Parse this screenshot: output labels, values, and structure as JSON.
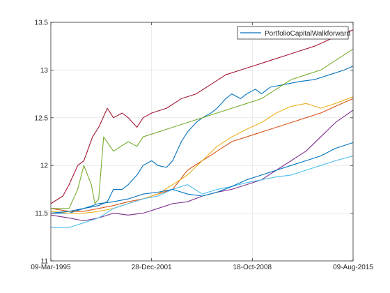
{
  "chart_data": {
    "type": "line",
    "title": "",
    "xlabel": "",
    "ylabel": "",
    "grid": true,
    "legend_placement": "top-right",
    "legend": [
      "PortfolioCapitalWalkforward"
    ],
    "x_range": [
      "1995-03-09",
      "2015-08-09"
    ],
    "ylim": [
      11,
      13.5
    ],
    "x_ticks": [
      {
        "date": "1995-03-09",
        "label": "09-Mar-1995"
      },
      {
        "date": "2001-12-28",
        "label": "28-Dec-2001"
      },
      {
        "date": "2008-10-18",
        "label": "18-Oct-2008"
      },
      {
        "date": "2015-08-09",
        "label": "09-Aug-2015"
      }
    ],
    "y_ticks": [
      11,
      11.5,
      12,
      12.5,
      13,
      13.5
    ],
    "y_tick_labels": [
      "11",
      "11.5",
      "12",
      "12.5",
      "13",
      "13.5"
    ],
    "series": [
      {
        "name": "PortfolioCapitalWalkforward",
        "color": "#0072BD",
        "points": [
          [
            "1995-03-09",
            11.5
          ],
          [
            "1996-06-01",
            11.5
          ],
          [
            "1997-06-01",
            11.55
          ],
          [
            "1998-06-01",
            11.58
          ],
          [
            "1999-01-01",
            11.62
          ],
          [
            "1999-06-01",
            11.75
          ],
          [
            "2000-01-01",
            11.75
          ],
          [
            "2000-06-01",
            11.8
          ],
          [
            "2001-01-01",
            11.9
          ],
          [
            "2001-06-01",
            12.0
          ],
          [
            "2002-01-01",
            12.05
          ],
          [
            "2002-06-01",
            12.0
          ],
          [
            "2003-01-01",
            11.98
          ],
          [
            "2003-06-01",
            12.05
          ],
          [
            "2004-01-01",
            12.25
          ],
          [
            "2004-06-01",
            12.35
          ],
          [
            "2005-01-01",
            12.45
          ],
          [
            "2005-06-01",
            12.5
          ],
          [
            "2006-01-01",
            12.55
          ],
          [
            "2006-06-01",
            12.6
          ],
          [
            "2007-01-01",
            12.7
          ],
          [
            "2007-06-01",
            12.75
          ],
          [
            "2008-01-01",
            12.7
          ],
          [
            "2008-06-01",
            12.75
          ],
          [
            "2009-01-01",
            12.8
          ],
          [
            "2009-06-01",
            12.75
          ],
          [
            "2010-01-01",
            12.82
          ],
          [
            "2011-01-01",
            12.85
          ],
          [
            "2012-01-01",
            12.88
          ],
          [
            "2013-01-01",
            12.9
          ],
          [
            "2014-01-01",
            12.95
          ],
          [
            "2015-01-01",
            13.0
          ],
          [
            "2015-08-09",
            13.04
          ]
        ]
      },
      {
        "color": "#D95319",
        "points": [
          [
            "1995-03-09",
            11.55
          ],
          [
            "1996-06-01",
            11.52
          ],
          [
            "1997-06-01",
            11.52
          ],
          [
            "1998-06-01",
            11.55
          ],
          [
            "1999-06-01",
            11.58
          ],
          [
            "2000-06-01",
            11.62
          ],
          [
            "2001-06-01",
            11.65
          ],
          [
            "2002-06-01",
            11.7
          ],
          [
            "2003-06-01",
            11.75
          ],
          [
            "2004-06-01",
            11.95
          ],
          [
            "2005-06-01",
            12.05
          ],
          [
            "2006-06-01",
            12.15
          ],
          [
            "2007-06-01",
            12.25
          ],
          [
            "2008-06-01",
            12.3
          ],
          [
            "2009-06-01",
            12.35
          ],
          [
            "2010-06-01",
            12.4
          ],
          [
            "2011-06-01",
            12.45
          ],
          [
            "2012-06-01",
            12.5
          ],
          [
            "2013-06-01",
            12.55
          ],
          [
            "2014-06-01",
            12.62
          ],
          [
            "2015-08-09",
            12.7
          ]
        ]
      },
      {
        "color": "#EDB120",
        "points": [
          [
            "1995-03-09",
            11.52
          ],
          [
            "1996-06-01",
            11.5
          ],
          [
            "1997-06-01",
            11.5
          ],
          [
            "1998-06-01",
            11.52
          ],
          [
            "1999-06-01",
            11.55
          ],
          [
            "2000-06-01",
            11.6
          ],
          [
            "2001-06-01",
            11.65
          ],
          [
            "2002-06-01",
            11.7
          ],
          [
            "2003-06-01",
            11.8
          ],
          [
            "2004-06-01",
            11.9
          ],
          [
            "2005-06-01",
            12.05
          ],
          [
            "2006-06-01",
            12.2
          ],
          [
            "2007-06-01",
            12.3
          ],
          [
            "2008-06-01",
            12.38
          ],
          [
            "2009-06-01",
            12.45
          ],
          [
            "2010-06-01",
            12.55
          ],
          [
            "2011-06-01",
            12.62
          ],
          [
            "2012-06-01",
            12.65
          ],
          [
            "2013-06-01",
            12.6
          ],
          [
            "2014-06-01",
            12.65
          ],
          [
            "2015-08-09",
            12.72
          ]
        ]
      },
      {
        "color": "#7E2F8E",
        "points": [
          [
            "1995-03-09",
            11.48
          ],
          [
            "1996-06-01",
            11.45
          ],
          [
            "1997-06-01",
            11.42
          ],
          [
            "1998-06-01",
            11.45
          ],
          [
            "1999-06-01",
            11.5
          ],
          [
            "2000-06-01",
            11.48
          ],
          [
            "2001-06-01",
            11.5
          ],
          [
            "2002-06-01",
            11.55
          ],
          [
            "2003-06-01",
            11.6
          ],
          [
            "2004-06-01",
            11.62
          ],
          [
            "2005-06-01",
            11.68
          ],
          [
            "2006-06-01",
            11.72
          ],
          [
            "2007-06-01",
            11.75
          ],
          [
            "2008-06-01",
            11.8
          ],
          [
            "2009-06-01",
            11.85
          ],
          [
            "2010-06-01",
            11.95
          ],
          [
            "2011-06-01",
            12.05
          ],
          [
            "2012-06-01",
            12.15
          ],
          [
            "2013-06-01",
            12.3
          ],
          [
            "2014-06-01",
            12.45
          ],
          [
            "2015-08-09",
            12.58
          ]
        ]
      },
      {
        "color": "#77AC30",
        "points": [
          [
            "1995-03-09",
            11.55
          ],
          [
            "1996-06-01",
            11.55
          ],
          [
            "1997-01-01",
            11.75
          ],
          [
            "1997-06-01",
            12.0
          ],
          [
            "1997-12-01",
            11.8
          ],
          [
            "1998-03-01",
            11.6
          ],
          [
            "1998-06-01",
            11.65
          ],
          [
            "1998-10-01",
            12.3
          ],
          [
            "1999-06-01",
            12.15
          ],
          [
            "2000-06-01",
            12.25
          ],
          [
            "2001-01-01",
            12.2
          ],
          [
            "2001-06-01",
            12.3
          ],
          [
            "2002-06-01",
            12.35
          ],
          [
            "2003-06-01",
            12.4
          ],
          [
            "2004-06-01",
            12.45
          ],
          [
            "2005-06-01",
            12.5
          ],
          [
            "2006-06-01",
            12.55
          ],
          [
            "2007-06-01",
            12.6
          ],
          [
            "2008-06-01",
            12.65
          ],
          [
            "2009-06-01",
            12.7
          ],
          [
            "2010-06-01",
            12.8
          ],
          [
            "2011-06-01",
            12.9
          ],
          [
            "2012-06-01",
            12.95
          ],
          [
            "2013-06-01",
            13.0
          ],
          [
            "2014-06-01",
            13.1
          ],
          [
            "2015-08-09",
            13.22
          ]
        ]
      },
      {
        "color": "#4DBEEE",
        "points": [
          [
            "1995-03-09",
            11.35
          ],
          [
            "1996-06-01",
            11.35
          ],
          [
            "1997-06-01",
            11.4
          ],
          [
            "1998-06-01",
            11.45
          ],
          [
            "1999-06-01",
            11.55
          ],
          [
            "2000-06-01",
            11.6
          ],
          [
            "2001-06-01",
            11.65
          ],
          [
            "2002-06-01",
            11.68
          ],
          [
            "2003-06-01",
            11.75
          ],
          [
            "2004-06-01",
            11.8
          ],
          [
            "2005-06-01",
            11.7
          ],
          [
            "2006-06-01",
            11.75
          ],
          [
            "2007-06-01",
            11.78
          ],
          [
            "2008-06-01",
            11.82
          ],
          [
            "2009-06-01",
            11.85
          ],
          [
            "2010-06-01",
            11.88
          ],
          [
            "2011-06-01",
            11.9
          ],
          [
            "2012-06-01",
            11.95
          ],
          [
            "2013-06-01",
            12.0
          ],
          [
            "2014-06-01",
            12.05
          ],
          [
            "2015-08-09",
            12.1
          ]
        ]
      },
      {
        "color": "#A2142F",
        "points": [
          [
            "1995-03-09",
            11.6
          ],
          [
            "1996-01-01",
            11.68
          ],
          [
            "1996-06-01",
            11.8
          ],
          [
            "1997-01-01",
            12.0
          ],
          [
            "1997-06-01",
            12.05
          ],
          [
            "1998-01-01",
            12.3
          ],
          [
            "1998-06-01",
            12.4
          ],
          [
            "1999-01-01",
            12.6
          ],
          [
            "1999-06-01",
            12.5
          ],
          [
            "2000-01-01",
            12.55
          ],
          [
            "2000-06-01",
            12.5
          ],
          [
            "2001-01-01",
            12.4
          ],
          [
            "2001-06-01",
            12.5
          ],
          [
            "2002-01-01",
            12.55
          ],
          [
            "2003-01-01",
            12.6
          ],
          [
            "2004-01-01",
            12.7
          ],
          [
            "2005-01-01",
            12.75
          ],
          [
            "2006-01-01",
            12.85
          ],
          [
            "2007-01-01",
            12.95
          ],
          [
            "2008-01-01",
            13.0
          ],
          [
            "2009-01-01",
            13.05
          ],
          [
            "2010-01-01",
            13.1
          ],
          [
            "2011-01-01",
            13.15
          ],
          [
            "2012-01-01",
            13.2
          ],
          [
            "2013-01-01",
            13.25
          ],
          [
            "2014-01-01",
            13.32
          ],
          [
            "2015-08-09",
            13.42
          ]
        ]
      },
      {
        "color": "#0072BD",
        "points": [
          [
            "1995-03-09",
            11.5
          ],
          [
            "1996-06-01",
            11.52
          ],
          [
            "1997-06-01",
            11.55
          ],
          [
            "1998-06-01",
            11.6
          ],
          [
            "1999-06-01",
            11.62
          ],
          [
            "2000-06-01",
            11.65
          ],
          [
            "2001-06-01",
            11.7
          ],
          [
            "2002-06-01",
            11.72
          ],
          [
            "2003-06-01",
            11.75
          ],
          [
            "2004-06-01",
            11.7
          ],
          [
            "2005-06-01",
            11.68
          ],
          [
            "2006-06-01",
            11.72
          ],
          [
            "2007-06-01",
            11.78
          ],
          [
            "2008-06-01",
            11.85
          ],
          [
            "2009-06-01",
            11.9
          ],
          [
            "2010-06-01",
            11.95
          ],
          [
            "2011-06-01",
            12.0
          ],
          [
            "2012-06-01",
            12.05
          ],
          [
            "2013-06-01",
            12.1
          ],
          [
            "2014-06-01",
            12.18
          ],
          [
            "2015-08-09",
            12.24
          ]
        ]
      }
    ]
  }
}
